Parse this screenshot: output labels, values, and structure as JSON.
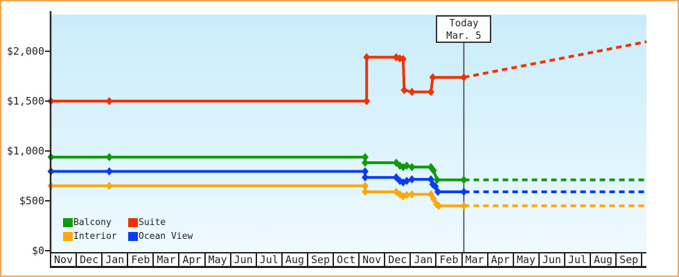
{
  "frame": {
    "border_color": "#efa757",
    "background": "#ffffff",
    "plot_bg_top": "#c9ecfa",
    "plot_bg_bottom": "#eefafe",
    "axis_color": "#2a2a2a"
  },
  "chart_data": {
    "type": "line",
    "description": "Cruise cabin price history by category; solid lines are recorded prices with diamond markers, dashed lines are projections after today (Mar. 5)",
    "x_axis": {
      "months": [
        "Nov",
        "Dec",
        "Jan",
        "Feb",
        "Mar",
        "Apr",
        "May",
        "Jun",
        "Jul",
        "Aug",
        "Sep",
        "Oct",
        "Nov",
        "Dec",
        "Jan",
        "Feb",
        "Mar",
        "Apr",
        "May",
        "Jun",
        "Jul",
        "Aug",
        "Sep"
      ]
    },
    "y_axis": {
      "ticks": [
        {
          "value": 0,
          "label": "$0"
        },
        {
          "value": 500,
          "label": "$500"
        },
        {
          "value": 1000,
          "label": "$1,000"
        },
        {
          "value": 1500,
          "label": "$1,500"
        },
        {
          "value": 2000,
          "label": "$2,000"
        }
      ],
      "ylim": [
        0,
        2370
      ]
    },
    "today_marker": {
      "line1": "Today",
      "line2": "Mar. 5",
      "month_position": 16.06
    },
    "series": [
      {
        "name": "Suite",
        "color": "#ee3300",
        "points": [
          [
            0,
            1500
          ],
          [
            2.27,
            1500
          ],
          [
            12.28,
            1500
          ],
          [
            12.28,
            1940
          ],
          [
            13.43,
            1940
          ],
          [
            13.57,
            1928
          ],
          [
            13.7,
            1922
          ],
          [
            13.74,
            1610
          ],
          [
            14.04,
            1592
          ],
          [
            14.78,
            1592
          ],
          [
            14.85,
            1738
          ],
          [
            16.06,
            1738
          ]
        ],
        "projection": [
          [
            16.06,
            1738
          ],
          [
            23.17,
            2095
          ]
        ]
      },
      {
        "name": "Balcony",
        "color": "#0d9b0d",
        "points": [
          [
            0,
            938
          ],
          [
            2.27,
            938
          ],
          [
            12.22,
            938
          ],
          [
            12.22,
            882
          ],
          [
            13.43,
            882
          ],
          [
            13.57,
            852
          ],
          [
            13.7,
            838
          ],
          [
            13.84,
            852
          ],
          [
            14.04,
            838
          ],
          [
            14.78,
            838
          ],
          [
            14.88,
            805
          ],
          [
            15.02,
            710
          ],
          [
            16.06,
            710
          ]
        ],
        "projection": [
          [
            16.06,
            710
          ],
          [
            23.17,
            710
          ]
        ]
      },
      {
        "name": "Ocean View",
        "color": "#0b3cf0",
        "points": [
          [
            0,
            795
          ],
          [
            2.27,
            795
          ],
          [
            12.22,
            795
          ],
          [
            12.22,
            735
          ],
          [
            13.43,
            735
          ],
          [
            13.57,
            700
          ],
          [
            13.7,
            685
          ],
          [
            13.84,
            700
          ],
          [
            14.04,
            715
          ],
          [
            14.78,
            715
          ],
          [
            14.85,
            665
          ],
          [
            14.95,
            645
          ],
          [
            15.05,
            590
          ],
          [
            16.06,
            590
          ]
        ],
        "projection": [
          [
            16.06,
            590
          ],
          [
            23.17,
            590
          ]
        ]
      },
      {
        "name": "Interior",
        "color": "#ffa70f",
        "points": [
          [
            0,
            650
          ],
          [
            2.27,
            650
          ],
          [
            12.22,
            650
          ],
          [
            12.22,
            590
          ],
          [
            13.43,
            590
          ],
          [
            13.57,
            565
          ],
          [
            13.7,
            545
          ],
          [
            13.84,
            558
          ],
          [
            14.04,
            565
          ],
          [
            14.78,
            565
          ],
          [
            14.88,
            520
          ],
          [
            15.0,
            465
          ],
          [
            15.08,
            450
          ],
          [
            16.06,
            450
          ]
        ],
        "projection": [
          [
            16.06,
            450
          ],
          [
            23.17,
            450
          ]
        ]
      }
    ],
    "legend": {
      "position": "bottom-left",
      "items": [
        {
          "label": "Balcony",
          "color": "#0d9b0d"
        },
        {
          "label": "Suite",
          "color": "#ee3300"
        },
        {
          "label": "Interior",
          "color": "#ffa70f"
        },
        {
          "label": "Ocean View",
          "color": "#0b3cf0"
        }
      ]
    }
  }
}
